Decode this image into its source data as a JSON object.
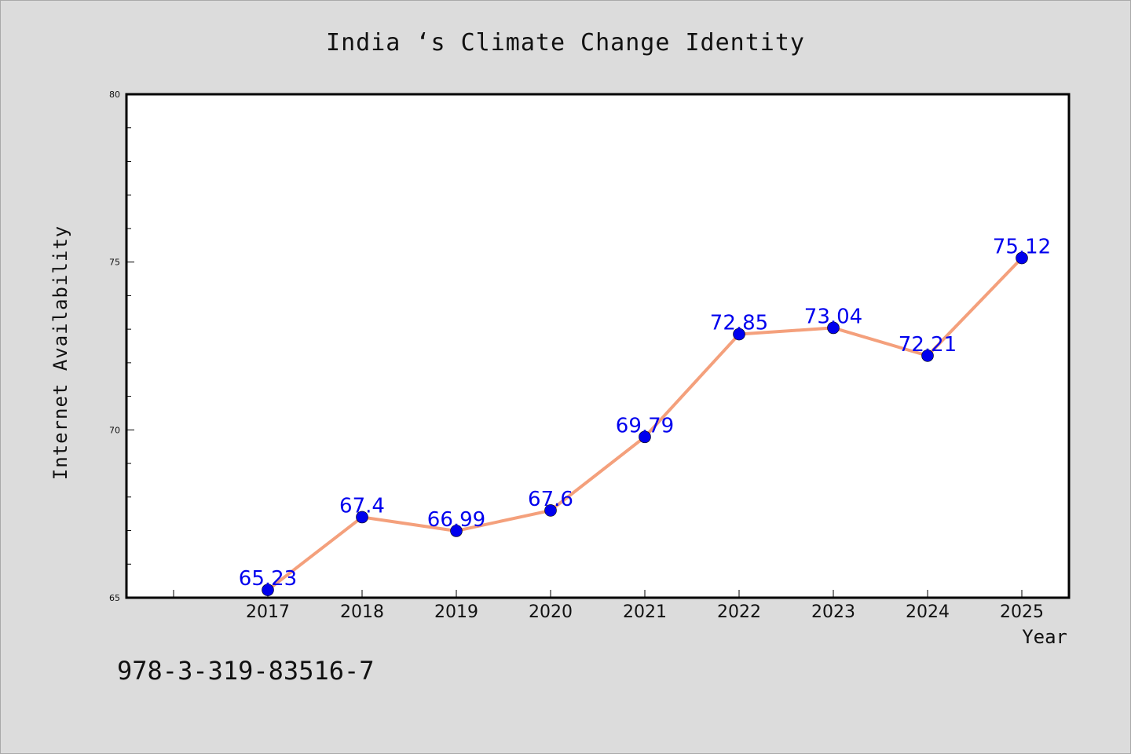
{
  "chart_data": {
    "type": "line",
    "title": "India ‘s Climate Change Identity",
    "xlabel": "Year",
    "ylabel": "Internet Availability",
    "categories": [
      "2017",
      "2018",
      "2019",
      "2020",
      "2021",
      "2022",
      "2023",
      "2024",
      "2025"
    ],
    "series": [
      {
        "values": [
          65.23,
          67.4,
          66.99,
          67.6,
          69.79,
          72.85,
          73.04,
          72.21,
          75.12
        ],
        "labels": [
          "65.23",
          "67.4",
          "66.99",
          "67.6",
          "69.79",
          "72.85",
          "73.04",
          "72.21",
          "75.12"
        ],
        "line_color": "#f4a07c",
        "marker_color": "#0000ee",
        "label_color": "#0000ee"
      }
    ],
    "ylim": [
      65,
      80
    ],
    "yticks": [
      "65",
      "70",
      "75",
      "80"
    ],
    "grid": false,
    "legend": "none"
  },
  "footer": {
    "code": "978-3-319-83516-7"
  }
}
